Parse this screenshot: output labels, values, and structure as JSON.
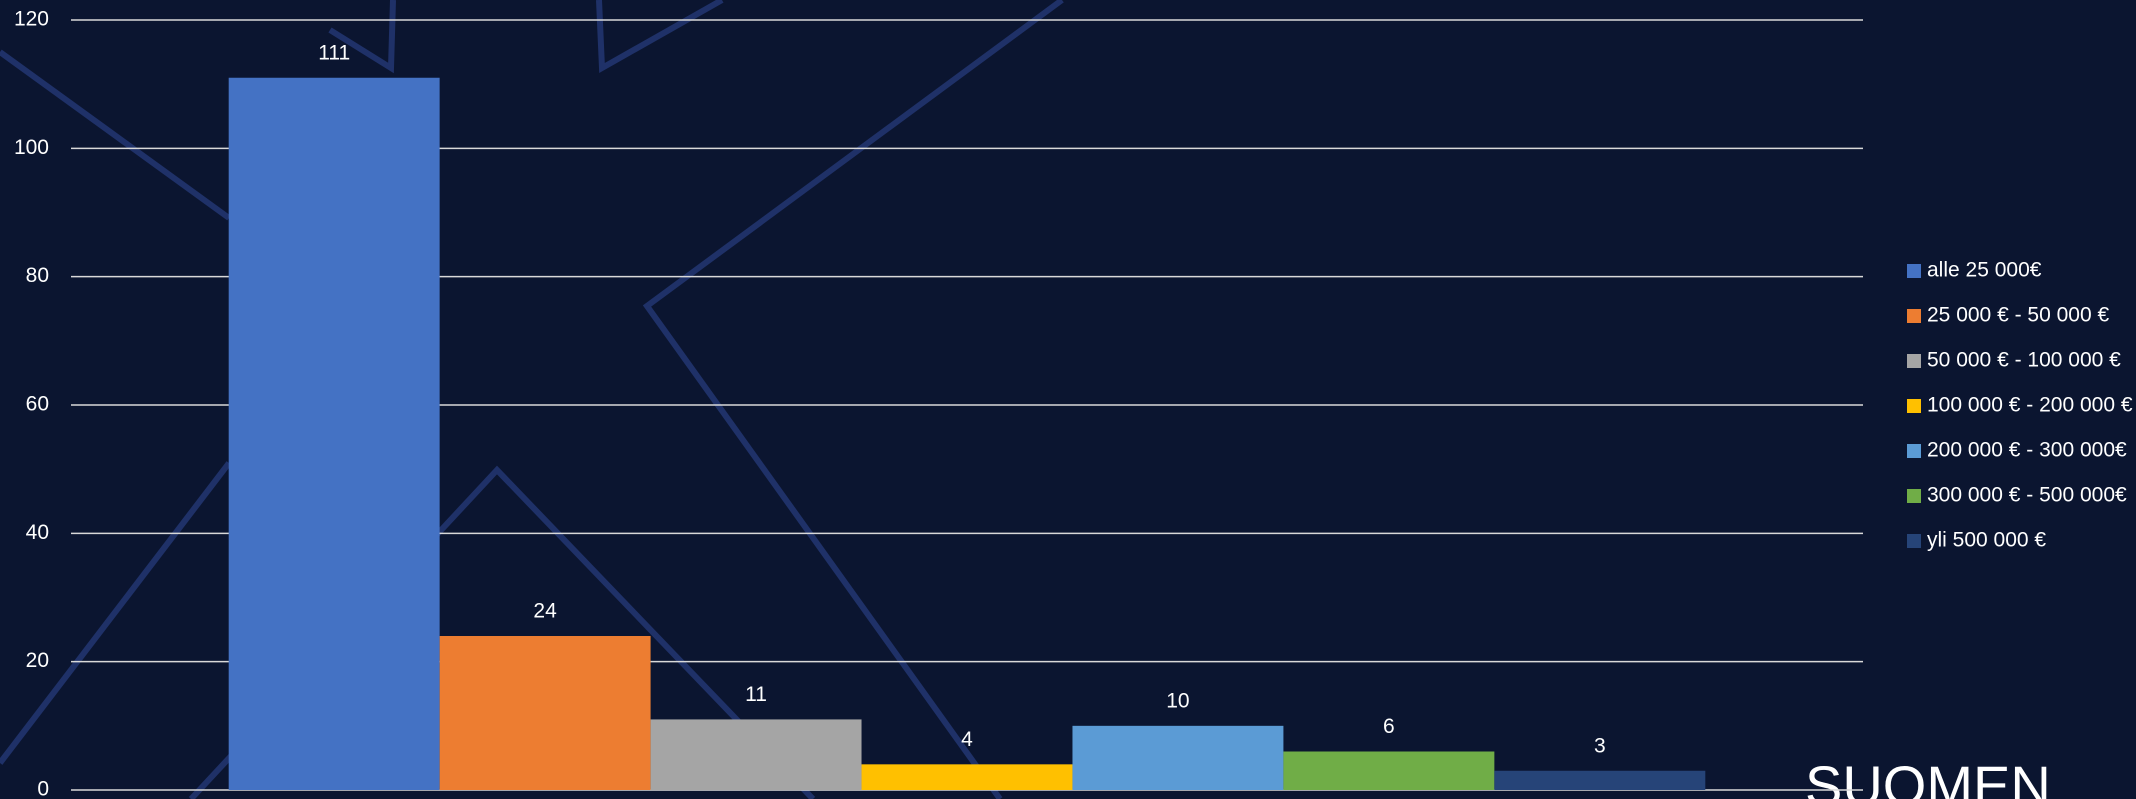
{
  "chart_data": {
    "type": "bar",
    "categories": [
      null
    ],
    "series": [
      {
        "name": "alle 25 000€",
        "color": "#4472c4",
        "values": [
          111
        ]
      },
      {
        "name": "25 000 € - 50 000 €",
        "color": "#ed7d31",
        "values": [
          24
        ]
      },
      {
        "name": "50 000 € - 100 000 €",
        "color": "#a5a5a5",
        "values": [
          11
        ]
      },
      {
        "name": "100 000 € - 200 000 €",
        "color": "#ffc000",
        "values": [
          4
        ]
      },
      {
        "name": "200 000 € - 300 000€",
        "color": "#5b9bd5",
        "values": [
          10
        ]
      },
      {
        "name": "300 000 € - 500 000€",
        "color": "#70ad47",
        "values": [
          6
        ]
      },
      {
        "name": "yli 500 000 €",
        "color": "#264478",
        "values": [
          3
        ]
      }
    ],
    "ylim": [
      0,
      120
    ],
    "yticks": [
      0,
      20,
      40,
      60,
      80,
      100,
      120
    ],
    "grid": true,
    "legend": "right"
  },
  "brand_text": "SUOMEN"
}
